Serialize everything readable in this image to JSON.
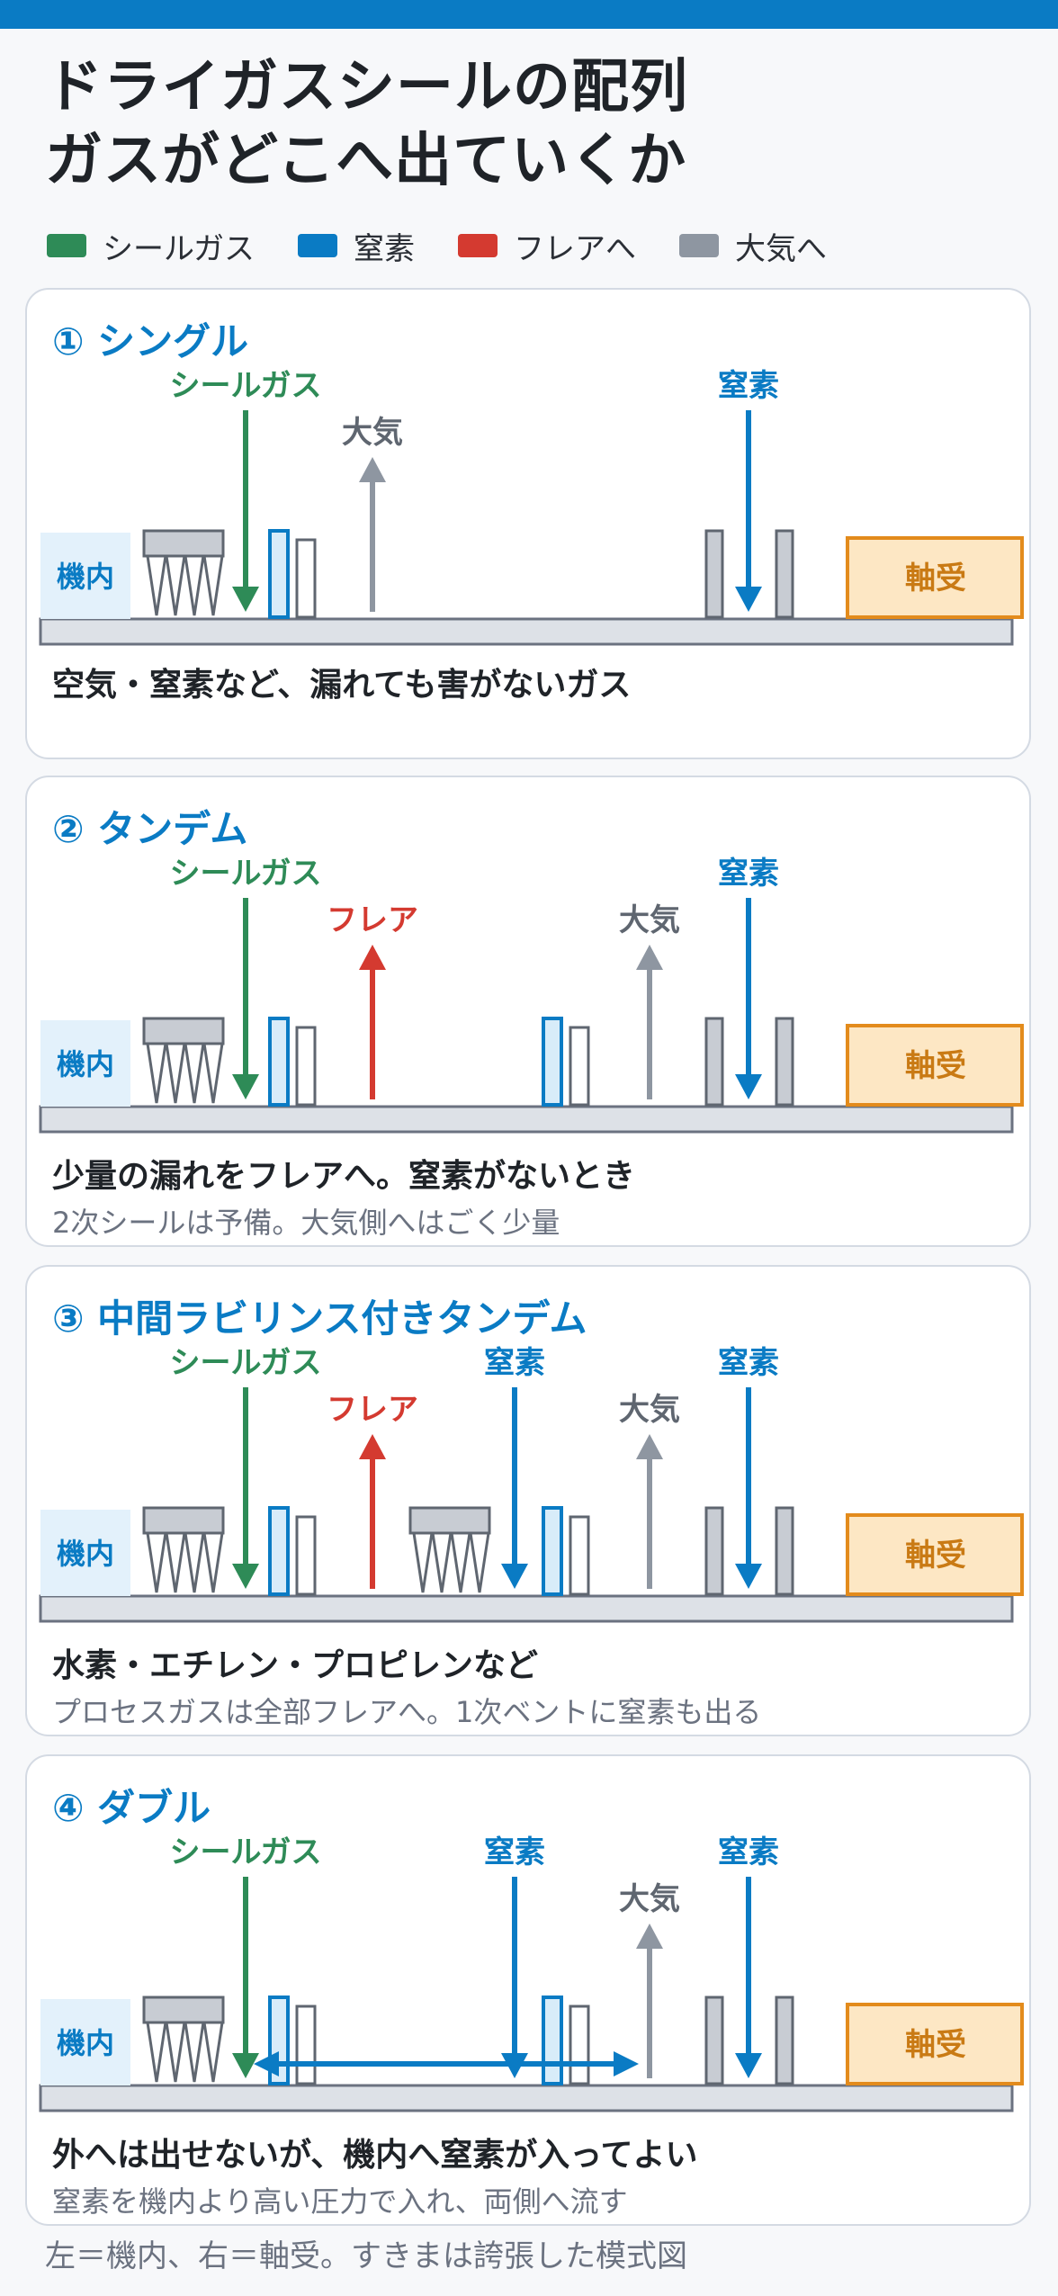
{
  "title": {
    "line1": "ドライガスシールの配列",
    "line2": "ガスがどこへ出ていくか"
  },
  "colors": {
    "seal_gas": "#2e8b57",
    "nitrogen": "#0a7bc4",
    "flare": "#d43a30",
    "atmosphere": "#8e96a1",
    "bearing_fill": "#fde7c4",
    "bearing_stroke": "#e38b1c",
    "machine_fill": "#e3f1fb",
    "gray": "#c8ccd3"
  },
  "legend": [
    {
      "label": "シールガス",
      "color": "#2e8b57"
    },
    {
      "label": "窒素",
      "color": "#0a7bc4"
    },
    {
      "label": "フレアへ",
      "color": "#d43a30"
    },
    {
      "label": "大気へ",
      "color": "#8e96a1"
    }
  ],
  "common": {
    "machine_label": "機内",
    "bearing_label": "軸受"
  },
  "cards": [
    {
      "title": "① シングル",
      "desc": "空気・窒素など、漏れても害がないガス",
      "sub": "",
      "flows": [
        {
          "type": "seal",
          "label": "シールガス"
        },
        {
          "type": "atm",
          "label": "大気"
        },
        {
          "type": "n2",
          "label": "窒素"
        }
      ]
    },
    {
      "title": "② タンデム",
      "desc": "少量の漏れをフレアへ。窒素がないとき",
      "sub": "2次シールは予備。大気側へはごく少量",
      "flows": [
        {
          "type": "seal",
          "label": "シールガス"
        },
        {
          "type": "flare",
          "label": "フレア"
        },
        {
          "type": "atm",
          "label": "大気"
        },
        {
          "type": "n2",
          "label": "窒素"
        }
      ]
    },
    {
      "title": "③ 中間ラビリンス付きタンデム",
      "desc": "水素・エチレン・プロピレンなど",
      "sub": "プロセスガスは全部フレアへ。1次ベントに窒素も出る",
      "flows": [
        {
          "type": "seal",
          "label": "シールガス"
        },
        {
          "type": "flare",
          "label": "フレア"
        },
        {
          "type": "n2",
          "label": "窒素"
        },
        {
          "type": "atm",
          "label": "大気"
        },
        {
          "type": "n2",
          "label": "窒素"
        }
      ]
    },
    {
      "title": "④ ダブル",
      "desc": "外へは出せないが、機内へ窒素が入ってよい",
      "sub": "窒素を機内より高い圧力で入れ、両側へ流す",
      "flows": [
        {
          "type": "seal",
          "label": "シールガス"
        },
        {
          "type": "n2",
          "label": "窒素"
        },
        {
          "type": "atm",
          "label": "大気"
        },
        {
          "type": "n2",
          "label": "窒素"
        }
      ]
    }
  ],
  "footnote": "左＝機内、右＝軸受。すきまは誇張した模式図"
}
